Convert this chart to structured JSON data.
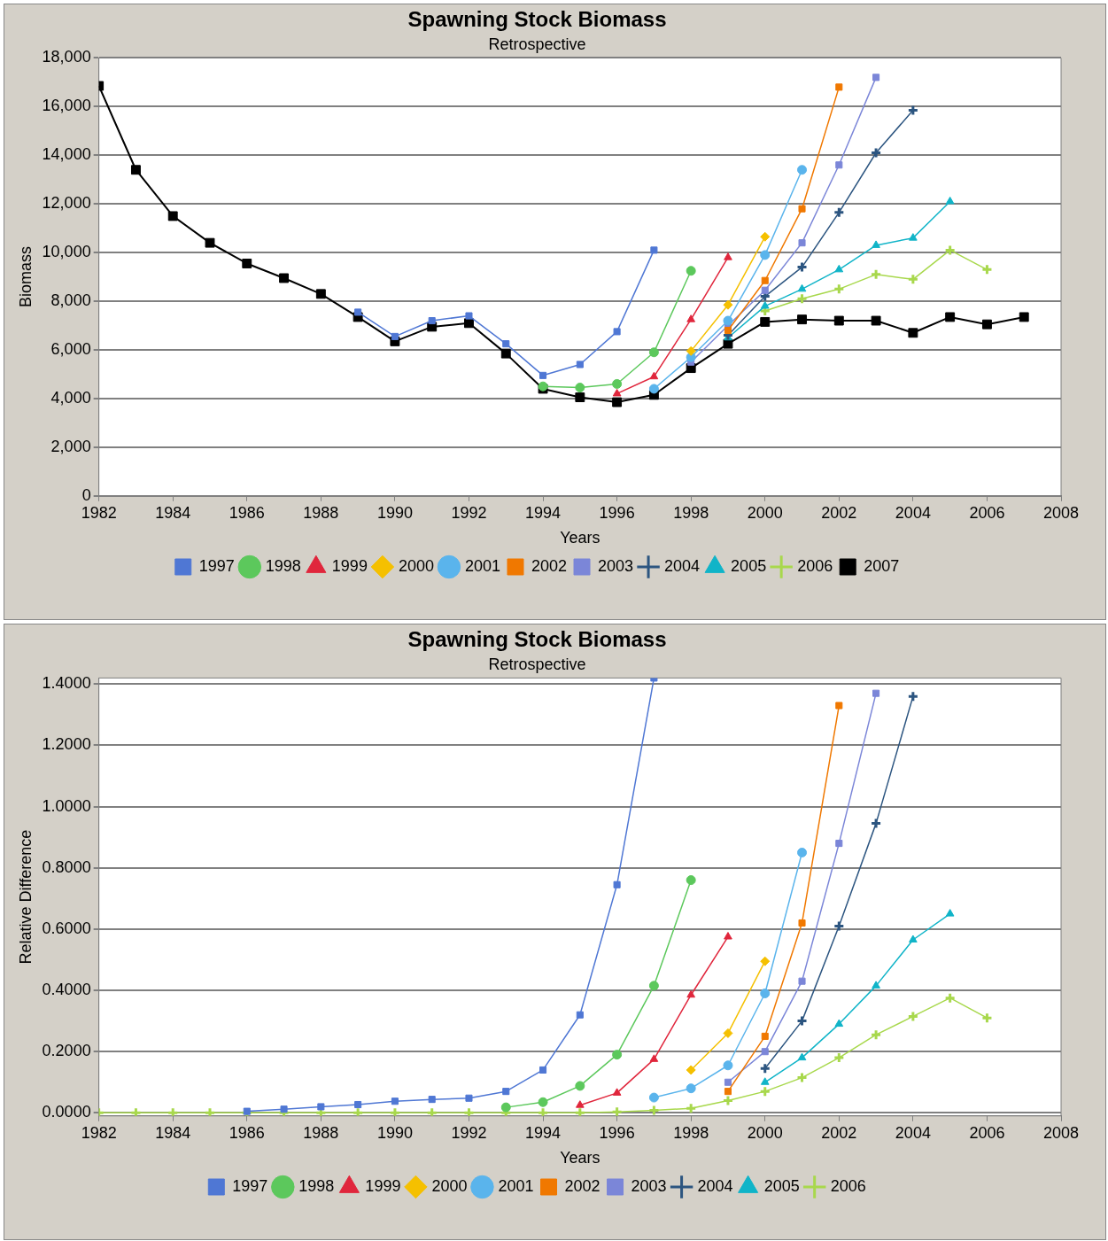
{
  "chart_data": [
    {
      "type": "line",
      "title": "Spawning Stock Biomass",
      "subtitle": "Retrospective",
      "xlabel": "Years",
      "ylabel": "Biomass",
      "xlim": [
        1982,
        2008
      ],
      "xticks": [
        1982,
        1984,
        1986,
        1988,
        1990,
        1992,
        1994,
        1996,
        1998,
        2000,
        2002,
        2004,
        2006,
        2008
      ],
      "ylim": [
        0,
        18000
      ],
      "yticks": [
        {
          "value": 0,
          "label": "0"
        },
        {
          "value": 2000,
          "label": "2,000"
        },
        {
          "value": 4000,
          "label": "4,000"
        },
        {
          "value": 6000,
          "label": "6,000"
        },
        {
          "value": 8000,
          "label": "8,000"
        },
        {
          "value": 10000,
          "label": "10,000"
        },
        {
          "value": 12000,
          "label": "12,000"
        },
        {
          "value": 14000,
          "label": "14,000"
        },
        {
          "value": 16000,
          "label": "16,000"
        },
        {
          "value": 18000,
          "label": "18,000"
        }
      ],
      "grid": "y",
      "legend": "bottom",
      "x": [
        1982,
        1983,
        1984,
        1985,
        1986,
        1987,
        1988,
        1989,
        1990,
        1991,
        1992,
        1993,
        1994,
        1995,
        1996,
        1997,
        1998,
        1999,
        2000,
        2001,
        2002,
        2003,
        2004,
        2005,
        2006,
        2007
      ],
      "series": [
        {
          "name": "1997",
          "color": "#4f77d4",
          "marker": "square",
          "values": [
            null,
            null,
            null,
            null,
            null,
            null,
            null,
            7550,
            6550,
            7200,
            7400,
            6250,
            4950,
            5400,
            6750,
            10100,
            null,
            null,
            null,
            null,
            null,
            null,
            null,
            null,
            null,
            null
          ]
        },
        {
          "name": "1998",
          "color": "#5cc85c",
          "marker": "circle",
          "values": [
            null,
            null,
            null,
            null,
            null,
            null,
            null,
            null,
            null,
            null,
            null,
            null,
            4500,
            4450,
            4600,
            5900,
            9250,
            null,
            null,
            null,
            null,
            null,
            null,
            null,
            null,
            null
          ]
        },
        {
          "name": "1999",
          "color": "#e0263c",
          "marker": "triangle",
          "values": [
            null,
            null,
            null,
            null,
            null,
            null,
            null,
            null,
            null,
            null,
            null,
            null,
            null,
            null,
            4200,
            4900,
            7250,
            9800,
            null,
            null,
            null,
            null,
            null,
            null,
            null,
            null
          ]
        },
        {
          "name": "2000",
          "color": "#f5c000",
          "marker": "diamond",
          "values": [
            null,
            null,
            null,
            null,
            null,
            null,
            null,
            null,
            null,
            null,
            null,
            null,
            null,
            null,
            null,
            null,
            5950,
            7850,
            10650,
            null,
            null,
            null,
            null,
            null,
            null,
            null
          ]
        },
        {
          "name": "2001",
          "color": "#5ab4ec",
          "marker": "circle",
          "values": [
            null,
            null,
            null,
            null,
            null,
            null,
            null,
            null,
            null,
            null,
            null,
            null,
            null,
            null,
            null,
            4400,
            5700,
            7200,
            9900,
            13400,
            null,
            null,
            null,
            null,
            null,
            null
          ]
        },
        {
          "name": "2002",
          "color": "#f07800",
          "marker": "square",
          "values": [
            null,
            null,
            null,
            null,
            null,
            null,
            null,
            null,
            null,
            null,
            null,
            null,
            null,
            null,
            null,
            null,
            null,
            6800,
            8850,
            11800,
            16800,
            null,
            null,
            null,
            null,
            null
          ]
        },
        {
          "name": "2003",
          "color": "#7b86d8",
          "marker": "square",
          "values": [
            null,
            null,
            null,
            null,
            null,
            null,
            null,
            null,
            null,
            null,
            null,
            null,
            null,
            null,
            null,
            null,
            5500,
            7000,
            8450,
            10400,
            13600,
            17200,
            null,
            null,
            null,
            null
          ]
        },
        {
          "name": "2004",
          "color": "#2c5580",
          "marker": "cross",
          "values": [
            null,
            null,
            null,
            null,
            null,
            null,
            null,
            null,
            null,
            null,
            null,
            null,
            null,
            null,
            null,
            null,
            null,
            6600,
            8200,
            9400,
            11650,
            14100,
            15850,
            null,
            null,
            null
          ]
        },
        {
          "name": "2005",
          "color": "#10b4c8",
          "marker": "triangle",
          "values": [
            null,
            null,
            null,
            null,
            null,
            null,
            null,
            null,
            null,
            null,
            null,
            null,
            null,
            null,
            null,
            null,
            null,
            6500,
            7800,
            8500,
            9300,
            10300,
            10600,
            12100,
            null,
            null
          ]
        },
        {
          "name": "2006",
          "color": "#a8d84c",
          "marker": "cross",
          "values": [
            null,
            null,
            null,
            null,
            null,
            null,
            null,
            null,
            null,
            null,
            null,
            null,
            null,
            null,
            null,
            null,
            null,
            null,
            7600,
            8100,
            8500,
            9100,
            8900,
            10100,
            9300,
            null
          ]
        },
        {
          "name": "2007",
          "color": "#000000",
          "marker": "square",
          "values": [
            16850,
            13400,
            11500,
            10400,
            9550,
            8950,
            8300,
            7350,
            6350,
            6950,
            7100,
            5850,
            4400,
            4050,
            3850,
            4150,
            5250,
            6250,
            7150,
            7250,
            7200,
            7200,
            6700,
            7350,
            7050,
            7350
          ]
        }
      ]
    },
    {
      "type": "line",
      "title": "Spawning Stock Biomass",
      "subtitle": "Retrospective",
      "xlabel": "Years",
      "ylabel": "Relative Difference",
      "xlim": [
        1982,
        2008
      ],
      "xticks": [
        1982,
        1984,
        1986,
        1988,
        1990,
        1992,
        1994,
        1996,
        1998,
        2000,
        2002,
        2004,
        2006,
        2008
      ],
      "ylim": [
        -0.01,
        1.42
      ],
      "yticks": [
        {
          "value": 0,
          "label": "0.0000"
        },
        {
          "value": 0.2,
          "label": "0.2000"
        },
        {
          "value": 0.4,
          "label": "0.4000"
        },
        {
          "value": 0.6,
          "label": "0.6000"
        },
        {
          "value": 0.8,
          "label": "0.8000"
        },
        {
          "value": 1,
          "label": "1.0000"
        },
        {
          "value": 1.2,
          "label": "1.2000"
        },
        {
          "value": 1.4,
          "label": "1.4000"
        }
      ],
      "grid": "y",
      "legend": "bottom",
      "x": [
        1982,
        1983,
        1984,
        1985,
        1986,
        1987,
        1988,
        1989,
        1990,
        1991,
        1992,
        1993,
        1994,
        1995,
        1996,
        1997,
        1998,
        1999,
        2000,
        2001,
        2002,
        2003,
        2004,
        2005,
        2006
      ],
      "series": [
        {
          "name": "1997",
          "color": "#4f77d4",
          "marker": "square",
          "values": [
            null,
            null,
            null,
            null,
            0.005,
            0.012,
            0.02,
            0.027,
            0.038,
            0.044,
            0.048,
            0.07,
            0.14,
            0.32,
            0.745,
            1.42,
            null,
            null,
            null,
            null,
            null,
            null,
            null,
            null,
            null
          ]
        },
        {
          "name": "1998",
          "color": "#5cc85c",
          "marker": "circle",
          "values": [
            null,
            null,
            null,
            null,
            null,
            null,
            null,
            null,
            null,
            null,
            null,
            0.018,
            0.035,
            0.088,
            0.19,
            0.415,
            0.76,
            null,
            null,
            null,
            null,
            null,
            null,
            null,
            null
          ]
        },
        {
          "name": "1999",
          "color": "#e0263c",
          "marker": "triangle",
          "values": [
            null,
            null,
            null,
            null,
            null,
            null,
            null,
            null,
            null,
            null,
            null,
            null,
            null,
            0.025,
            0.065,
            0.175,
            0.385,
            0.575,
            null,
            null,
            null,
            null,
            null,
            null,
            null
          ]
        },
        {
          "name": "2000",
          "color": "#f5c000",
          "marker": "diamond",
          "values": [
            null,
            null,
            null,
            null,
            null,
            null,
            null,
            null,
            null,
            null,
            null,
            null,
            null,
            null,
            null,
            null,
            0.14,
            0.26,
            0.495,
            null,
            null,
            null,
            null,
            null,
            null
          ]
        },
        {
          "name": "2001",
          "color": "#5ab4ec",
          "marker": "circle",
          "values": [
            null,
            null,
            null,
            null,
            null,
            null,
            null,
            null,
            null,
            null,
            null,
            null,
            null,
            null,
            null,
            0.05,
            0.08,
            0.155,
            0.39,
            0.85,
            null,
            null,
            null,
            null,
            null
          ]
        },
        {
          "name": "2002",
          "color": "#f07800",
          "marker": "square",
          "values": [
            null,
            null,
            null,
            null,
            null,
            null,
            null,
            null,
            null,
            null,
            null,
            null,
            null,
            null,
            null,
            null,
            null,
            0.07,
            0.25,
            0.62,
            1.33,
            null,
            null,
            null,
            null
          ]
        },
        {
          "name": "2003",
          "color": "#7b86d8",
          "marker": "square",
          "values": [
            null,
            null,
            null,
            null,
            null,
            null,
            null,
            null,
            null,
            null,
            null,
            null,
            null,
            null,
            null,
            null,
            null,
            0.1,
            0.2,
            0.43,
            0.88,
            1.37,
            null,
            null,
            null
          ]
        },
        {
          "name": "2004",
          "color": "#2c5580",
          "marker": "cross",
          "values": [
            null,
            null,
            null,
            null,
            null,
            null,
            null,
            null,
            null,
            null,
            null,
            null,
            null,
            null,
            null,
            null,
            null,
            null,
            0.145,
            0.3,
            0.61,
            0.945,
            1.36,
            null,
            null
          ]
        },
        {
          "name": "2005",
          "color": "#10b4c8",
          "marker": "triangle",
          "values": [
            null,
            null,
            null,
            null,
            null,
            null,
            null,
            null,
            null,
            null,
            null,
            null,
            null,
            null,
            null,
            null,
            null,
            null,
            0.1,
            0.18,
            0.29,
            0.415,
            0.565,
            0.65,
            null
          ]
        },
        {
          "name": "2006",
          "color": "#a8d84c",
          "marker": "cross",
          "values": [
            0,
            0,
            0,
            0,
            0,
            0,
            0,
            0,
            0,
            0,
            0,
            0,
            0,
            0,
            0.003,
            0.008,
            0.015,
            0.04,
            0.07,
            0.115,
            0.18,
            0.255,
            0.315,
            0.375,
            0.31
          ]
        }
      ]
    }
  ]
}
